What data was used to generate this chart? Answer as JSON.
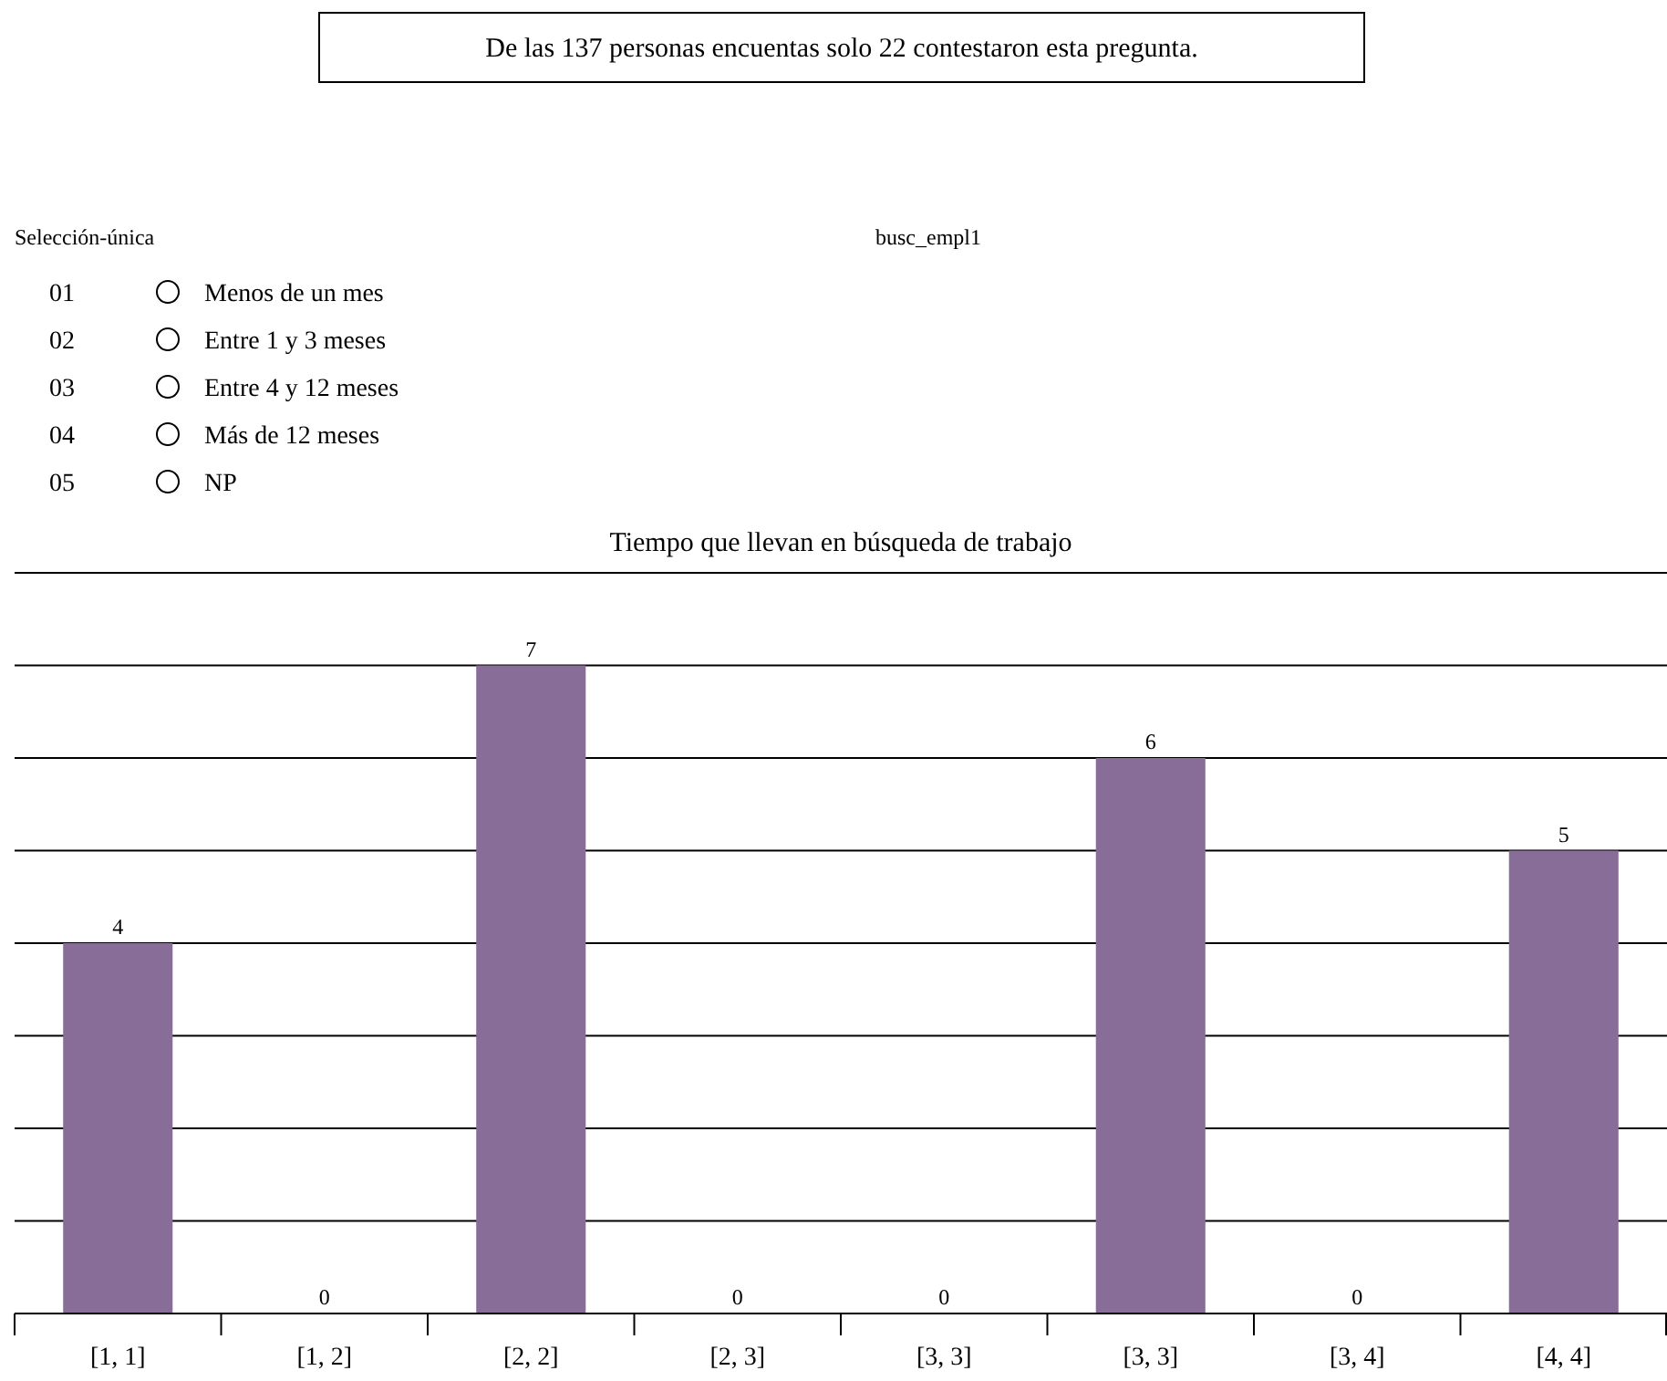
{
  "chart_data": {
    "type": "bar",
    "title": "Tiempo que llevan en búsqueda de trabajo",
    "categories": [
      "[1, 1]",
      "[1, 2]",
      "[2, 2]",
      "[2, 3]",
      "[3, 3]",
      "[3, 3]",
      "[3, 4]",
      "[4, 4]"
    ],
    "values": [
      4,
      0,
      7,
      0,
      0,
      6,
      0,
      5
    ],
    "color": "#886d99",
    "data_labels": true,
    "ylim": [
      0,
      8
    ],
    "yticks": [
      {
        "value": 0,
        "label": null
      },
      {
        "value": 1,
        "label": null
      },
      {
        "value": 2,
        "label": null
      },
      {
        "value": 3,
        "label": null
      },
      {
        "value": 4,
        "label": null
      },
      {
        "value": 5,
        "label": null
      },
      {
        "value": 6,
        "label": null
      },
      {
        "value": 7,
        "label": null
      },
      {
        "value": 8,
        "label": null
      }
    ],
    "grid": "y",
    "tick_labels": "x",
    "annotations": [
      "De las 137 personas encuentas solo 22 contestaron esta pregunta.",
      "Selección-única",
      "busc_empl1",
      "01",
      "Menos de un mes",
      "02",
      "Entre 1 y 3 meses",
      "03",
      "Entre 4 y 12 meses",
      "04",
      "Más de 12 meses",
      "05",
      "NP"
    ]
  }
}
